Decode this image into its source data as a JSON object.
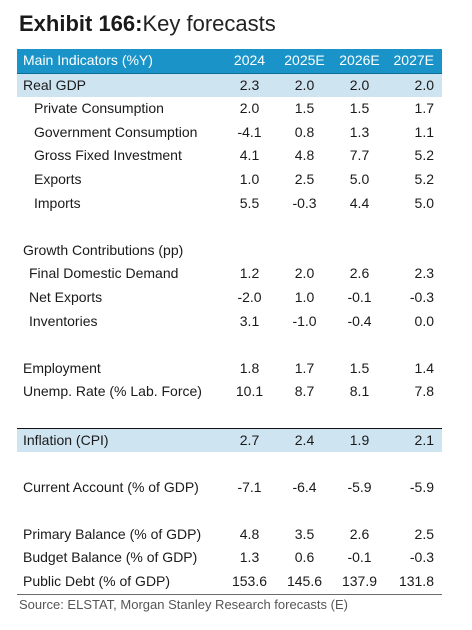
{
  "title": {
    "bold": "Exhibit 166:",
    "text": "Key forecasts"
  },
  "table": {
    "header": {
      "label": "Main Indicators (%Y)",
      "cols": [
        "2024",
        "2025E",
        "2026E",
        "2027E"
      ]
    },
    "rows": [
      {
        "label": "Real GDP",
        "values": [
          "2.3",
          "2.0",
          "2.0",
          "2.0"
        ]
      },
      {
        "label": "Private Consumption",
        "values": [
          "2.0",
          "1.5",
          "1.5",
          "1.7"
        ]
      },
      {
        "label": "Government Consumption",
        "values": [
          "-4.1",
          "0.8",
          "1.3",
          "1.1"
        ]
      },
      {
        "label": "Gross Fixed Investment",
        "values": [
          "4.1",
          "4.8",
          "7.7",
          "5.2"
        ]
      },
      {
        "label": "Exports",
        "values": [
          "1.0",
          "2.5",
          "5.0",
          "5.2"
        ]
      },
      {
        "label": "Imports",
        "values": [
          "5.5",
          "-0.3",
          "4.4",
          "5.0"
        ]
      },
      {
        "label": "Growth Contributions (pp)",
        "values": [
          "",
          "",
          "",
          ""
        ]
      },
      {
        "label": "Final Domestic Demand",
        "values": [
          "1.2",
          "2.0",
          "2.6",
          "2.3"
        ]
      },
      {
        "label": "Net Exports",
        "values": [
          "-2.0",
          "1.0",
          "-0.1",
          "-0.3"
        ]
      },
      {
        "label": "Inventories",
        "values": [
          "3.1",
          "-1.0",
          "-0.4",
          "0.0"
        ]
      },
      {
        "label": "Employment",
        "values": [
          "1.8",
          "1.7",
          "1.5",
          "1.4"
        ]
      },
      {
        "label": "Unemp. Rate (% Lab. Force)",
        "values": [
          "10.1",
          "8.7",
          "8.1",
          "7.8"
        ]
      },
      {
        "label": "Inflation (CPI)",
        "values": [
          "2.7",
          "2.4",
          "1.9",
          "2.1"
        ]
      },
      {
        "label": "Current Account (% of GDP)",
        "values": [
          "-7.1",
          "-6.4",
          "-5.9",
          "-5.9"
        ]
      },
      {
        "label": "Primary Balance (% of GDP)",
        "values": [
          "4.8",
          "3.5",
          "2.6",
          "2.5"
        ]
      },
      {
        "label": "Budget Balance (% of GDP)",
        "values": [
          "1.3",
          "0.6",
          "-0.1",
          "-0.3"
        ]
      },
      {
        "label": "Public Debt (% of GDP)",
        "values": [
          "153.6",
          "145.6",
          "137.9",
          "131.8"
        ]
      }
    ]
  },
  "source": "Source: ELSTAT, Morgan Stanley Research forecasts (E)",
  "colors": {
    "header_bg": "#1a94c8",
    "highlight_bg": "#cfe4f1",
    "header_text": "#ffffff"
  }
}
